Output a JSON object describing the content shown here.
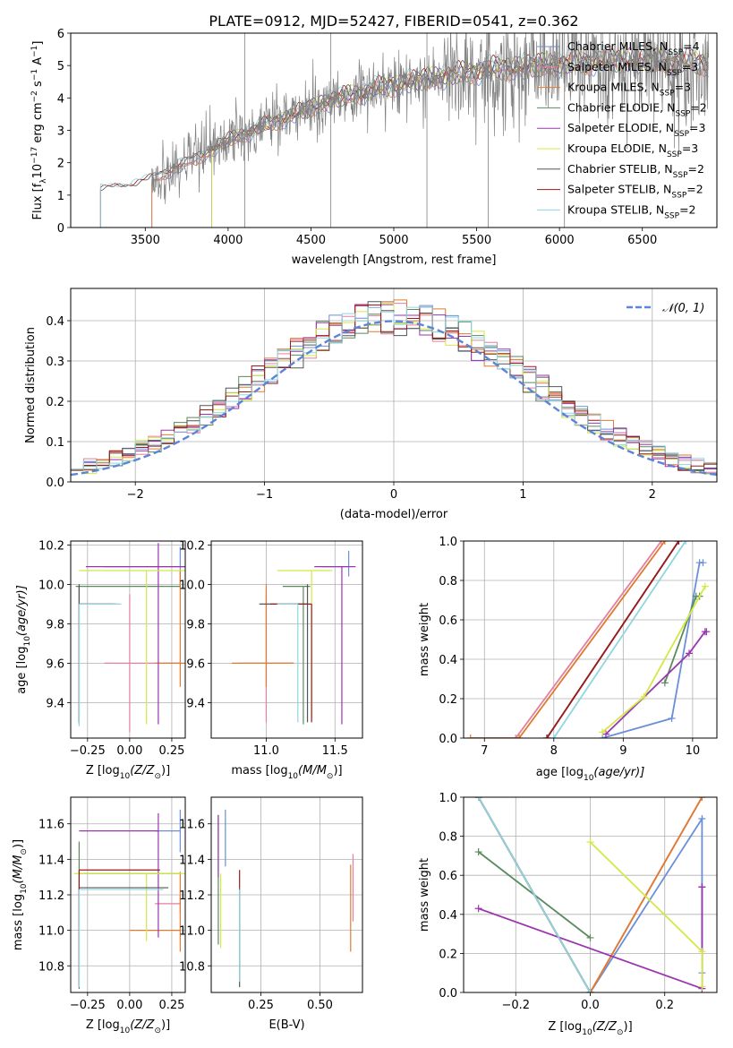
{
  "figure": {
    "title": "PLATE=0912, MJD=52427, FIBERID=0541, z=0.362"
  },
  "colors": {
    "chabrier_miles": "#6a8fd8",
    "salpeter_miles": "#e57fa0",
    "kroupa_miles": "#e07a30",
    "chabrier_elodie": "#5a8a5e",
    "salpeter_elodie": "#9b35b0",
    "kroupa_elodie": "#d4e845",
    "chabrier_stelib": "#555555",
    "salpeter_stelib": "#9b1a1a",
    "kroupa_stelib": "#8fd6e0",
    "data_spectrum": "#808080",
    "normal_curve": "#5b85d9",
    "grid": "#b0b0b0"
  },
  "chart_data": [
    {
      "id": "spectrum",
      "type": "line",
      "xlabel": "wavelength [Angstrom, rest frame]",
      "ylabel_main": "Flux [f",
      "ylabel_sub": "λ",
      "ylabel_mid": "10",
      "ylabel_exp1": "−17",
      "ylabel_tail": " erg cm",
      "ylabel_exp2": "−2",
      "ylabel_tail2": " s",
      "ylabel_exp3": "−1",
      "ylabel_tail3": " A",
      "ylabel_exp4": "−1",
      "ylabel_end": "]",
      "xlim": [
        3050,
        6950
      ],
      "ylim": [
        0,
        6
      ],
      "xticks": [
        3500,
        4000,
        4500,
        5000,
        5500,
        6000,
        6500
      ],
      "yticks": [
        0,
        1,
        2,
        3,
        4,
        5,
        6
      ],
      "continuum_points": [
        [
          3230,
          1.15
        ],
        [
          3400,
          1.25
        ],
        [
          3520,
          1.45
        ],
        [
          3800,
          2.1
        ],
        [
          4000,
          2.7
        ],
        [
          4300,
          3.3
        ],
        [
          4600,
          3.9
        ],
        [
          4900,
          4.3
        ],
        [
          5200,
          4.6
        ],
        [
          5600,
          4.9
        ],
        [
          6000,
          5.05
        ],
        [
          6400,
          5.2
        ],
        [
          6700,
          5.1
        ]
      ],
      "legend": [
        {
          "label": "Chabrier MILES, N",
          "sub": "SSP",
          "suffix": "=4"
        },
        {
          "label": "Salpeter MILES, N",
          "sub": "SSP",
          "suffix": "=3"
        },
        {
          "label": "Kroupa MILES, N",
          "sub": "SSP",
          "suffix": "=3"
        },
        {
          "label": "Chabrier ELODIE, N",
          "sub": "SSP",
          "suffix": "=2"
        },
        {
          "label": "Salpeter ELODIE, N",
          "sub": "SSP",
          "suffix": "=3"
        },
        {
          "label": "Kroupa ELODIE, N",
          "sub": "SSP",
          "suffix": "=3"
        },
        {
          "label": "Chabrier STELIB, N",
          "sub": "SSP",
          "suffix": "=2"
        },
        {
          "label": "Salpeter STELIB, N",
          "sub": "SSP",
          "suffix": "=2"
        },
        {
          "label": "Kroupa STELIB, N",
          "sub": "SSP",
          "suffix": "=2"
        }
      ]
    },
    {
      "id": "residuals",
      "type": "histogram",
      "xlabel": "(data-model)/error",
      "ylabel": "Normed distribution",
      "xlim": [
        -2.5,
        2.5
      ],
      "ylim": [
        0,
        0.48
      ],
      "xticks": [
        -2,
        -1,
        0,
        1,
        2
      ],
      "yticks": [
        0.0,
        0.1,
        0.2,
        0.3,
        0.4
      ],
      "legend": "𝒩(0, 1)",
      "bin_width": 0.1,
      "bin_start": -2.5
    },
    {
      "id": "age_vs_Z",
      "type": "errorbar",
      "xlabel": "Z [log",
      "xlabel_sub": "10",
      "xlabel_rest": "(Z/Z",
      "xlabel_sun": "⊙",
      "xlabel_end": ")]",
      "ylabel": "age  [log",
      "ylabel_sub": "10",
      "ylabel_rest": "(age/yr)]",
      "xlim": [
        -0.35,
        0.33
      ],
      "ylim": [
        9.22,
        10.22
      ],
      "xticks": [
        -0.25,
        0.0,
        0.25
      ],
      "xticklabels": [
        "−0.25",
        "0.00",
        "0.25"
      ],
      "yticks": [
        9.4,
        9.6,
        9.8,
        10.0,
        10.2
      ],
      "points": [
        {
          "s": "chabrier_miles",
          "x": 0.3,
          "xerr": [
            0.45,
            0.45
          ],
          "y": 10.09,
          "yerr": [
            0.1,
            0.1
          ]
        },
        {
          "s": "salpeter_miles",
          "x": 0.0,
          "xerr": [
            0.15,
            0.3
          ],
          "y": 9.6,
          "yerr": [
            0.35,
            0.35
          ]
        },
        {
          "s": "kroupa_miles",
          "x": 0.3,
          "xerr": [
            0.15,
            0.15
          ],
          "y": 9.6,
          "yerr": [
            0.12,
            0.47
          ]
        },
        {
          "s": "chabrier_elodie",
          "x": -0.3,
          "xerr": [
            0.02,
            0.6
          ],
          "y": 9.99,
          "yerr": [
            0.7,
            0.0
          ]
        },
        {
          "s": "salpeter_elodie",
          "x": 0.17,
          "xerr": [
            0.43,
            0.4
          ],
          "y": 10.09,
          "yerr": [
            0.8,
            0.12
          ]
        },
        {
          "s": "kroupa_elodie",
          "x": 0.1,
          "xerr": [
            0.4,
            0.23
          ],
          "y": 10.07,
          "yerr": [
            0.78,
            0.0
          ]
        },
        {
          "s": "chabrier_stelib",
          "x": -0.3,
          "xerr": [
            0.0,
            0.2
          ],
          "y": 9.9,
          "yerr": [
            0.6,
            0.1
          ]
        },
        {
          "s": "salpeter_stelib",
          "x": -0.3,
          "xerr": [
            0.0,
            0.22
          ],
          "y": 9.9,
          "yerr": [
            0.6,
            0.0
          ]
        },
        {
          "s": "kroupa_stelib",
          "x": -0.3,
          "xerr": [
            0.0,
            0.25
          ],
          "y": 9.9,
          "yerr": [
            0.62,
            0.0
          ]
        }
      ]
    },
    {
      "id": "age_vs_mass",
      "type": "errorbar",
      "xlabel": "mass [log",
      "xlabel_sub": "10",
      "xlabel_rest": "(M/M",
      "xlabel_sun": "⊙",
      "xlabel_end": ")]",
      "xlim": [
        10.6,
        11.7
      ],
      "ylim": [
        9.22,
        10.22
      ],
      "xticks": [
        11.0,
        11.5
      ],
      "xticklabels": [
        "11.0",
        "11.5"
      ],
      "yticks": [
        9.4,
        9.6,
        9.8,
        10.0,
        10.2
      ],
      "points": [
        {
          "s": "chabrier_miles",
          "x": 11.6,
          "xerr": [
            0.2,
            0.0
          ],
          "y": 10.09,
          "yerr": [
            0.05,
            0.08
          ]
        },
        {
          "s": "salpeter_miles",
          "x": 11.0,
          "xerr": [
            0.2,
            0.2
          ],
          "y": 9.6,
          "yerr": [
            0.3,
            0.35
          ]
        },
        {
          "s": "kroupa_miles",
          "x": 11.0,
          "xerr": [
            0.25,
            0.2
          ],
          "y": 9.6,
          "yerr": [
            0.12,
            0.4
          ]
        },
        {
          "s": "chabrier_elodie",
          "x": 11.27,
          "xerr": [
            0.15,
            0.05
          ],
          "y": 9.99,
          "yerr": [
            0.7,
            0.0
          ]
        },
        {
          "s": "salpeter_elodie",
          "x": 11.55,
          "xerr": [
            0.2,
            0.1
          ],
          "y": 10.09,
          "yerr": [
            0.8,
            0.0
          ]
        },
        {
          "s": "kroupa_elodie",
          "x": 11.33,
          "xerr": [
            0.25,
            0.15
          ],
          "y": 10.07,
          "yerr": [
            0.75,
            0.0
          ]
        },
        {
          "s": "chabrier_stelib",
          "x": 11.3,
          "xerr": [
            0.35,
            0.0
          ],
          "y": 9.9,
          "yerr": [
            0.6,
            0.1
          ]
        },
        {
          "s": "salpeter_stelib",
          "x": 11.33,
          "xerr": [
            0.3,
            0.0
          ],
          "y": 9.9,
          "yerr": [
            0.6,
            0.0
          ]
        },
        {
          "s": "kroupa_stelib",
          "x": 11.23,
          "xerr": [
            0.15,
            0.0
          ],
          "y": 9.9,
          "yerr": [
            0.6,
            0.0
          ]
        }
      ]
    },
    {
      "id": "massweight_vs_age",
      "type": "line",
      "xlabel": "age  [log",
      "xlabel_sub": "10",
      "xlabel_rest": "(age/yr)]",
      "ylabel": "mass weight",
      "xlim": [
        6.7,
        10.35
      ],
      "ylim": [
        0,
        1
      ],
      "xticks": [
        7,
        8,
        9,
        10
      ],
      "yticks": [
        0.0,
        0.2,
        0.4,
        0.6,
        0.8,
        1.0
      ],
      "series": [
        {
          "s": "chabrier_miles",
          "x": [
            8.7,
            9.7,
            10.1,
            10.15
          ],
          "y": [
            0.0,
            0.1,
            0.89,
            0.89
          ]
        },
        {
          "s": "salpeter_miles",
          "x": [
            7.45,
            9.55
          ],
          "y": [
            0.0,
            1.0
          ]
        },
        {
          "s": "kroupa_miles",
          "x": [
            6.8,
            7.5,
            9.6
          ],
          "y": [
            0.0,
            0.0,
            1.0
          ]
        },
        {
          "s": "chabrier_elodie",
          "x": [
            9.6,
            10.05,
            10.1
          ],
          "y": [
            0.28,
            0.72,
            0.72
          ]
        },
        {
          "s": "salpeter_elodie",
          "x": [
            8.75,
            9.95,
            10.18,
            10.2
          ],
          "y": [
            0.02,
            0.43,
            0.54,
            0.54
          ]
        },
        {
          "s": "kroupa_elodie",
          "x": [
            8.7,
            9.3,
            10.18
          ],
          "y": [
            0.03,
            0.21,
            0.77
          ]
        },
        {
          "s": "chabrier_stelib",
          "x": [
            7.9,
            9.8
          ],
          "y": [
            0.0,
            1.0
          ]
        },
        {
          "s": "salpeter_stelib",
          "x": [
            7.9,
            9.8
          ],
          "y": [
            0.0,
            1.0
          ]
        },
        {
          "s": "kroupa_stelib",
          "x": [
            8.0,
            9.9
          ],
          "y": [
            0.0,
            1.0
          ]
        }
      ]
    },
    {
      "id": "mass_vs_Z",
      "type": "errorbar",
      "xlabel": "Z [log",
      "xlabel_sub": "10",
      "xlabel_rest": "(Z/Z",
      "xlabel_sun": "⊙",
      "xlabel_end": ")]",
      "ylabel": "mass [log",
      "ylabel_sub": "10",
      "ylabel_rest": "(M/M",
      "ylabel_sun": "⊙",
      "ylabel_end": ")]",
      "xlim": [
        -0.35,
        0.33
      ],
      "ylim": [
        10.65,
        11.75
      ],
      "xticks": [
        -0.25,
        0.0,
        0.25
      ],
      "xticklabels": [
        "−0.25",
        "0.00",
        "0.25"
      ],
      "yticks": [
        10.8,
        11.0,
        11.2,
        11.4,
        11.6
      ],
      "points": [
        {
          "s": "chabrier_miles",
          "x": 0.3,
          "xerr": [
            0.15,
            0.0
          ],
          "y": 11.56,
          "yerr": [
            0.12,
            0.12
          ]
        },
        {
          "s": "salpeter_miles",
          "x": 0.3,
          "xerr": [
            0.15,
            0.0
          ],
          "y": 11.15,
          "yerr": [
            0.05,
            0.05
          ]
        },
        {
          "s": "kroupa_miles",
          "x": 0.3,
          "xerr": [
            0.3,
            0.0
          ],
          "y": 11.0,
          "yerr": [
            0.12,
            0.33
          ]
        },
        {
          "s": "chabrier_elodie",
          "x": -0.3,
          "xerr": [
            0.0,
            0.6
          ],
          "y": 11.32,
          "yerr": [
            0.65,
            0.18
          ]
        },
        {
          "s": "salpeter_elodie",
          "x": 0.17,
          "xerr": [
            0.47,
            0.0
          ],
          "y": 11.56,
          "yerr": [
            0.6,
            0.1
          ]
        },
        {
          "s": "kroupa_elodie",
          "x": 0.1,
          "xerr": [
            0.43,
            0.23
          ],
          "y": 11.32,
          "yerr": [
            0.38,
            0.0
          ]
        },
        {
          "s": "chabrier_stelib",
          "x": -0.3,
          "xerr": [
            0.0,
            0.53
          ],
          "y": 11.24,
          "yerr": [
            0.56,
            0.0
          ]
        },
        {
          "s": "salpeter_stelib",
          "x": -0.3,
          "xerr": [
            0.0,
            0.48
          ],
          "y": 11.34,
          "yerr": [
            0.65,
            0.0
          ]
        },
        {
          "s": "kroupa_stelib",
          "x": -0.3,
          "xerr": [
            0.0,
            0.5
          ],
          "y": 11.23,
          "yerr": [
            0.55,
            0.0
          ]
        }
      ]
    },
    {
      "id": "mass_vs_ebv",
      "type": "errorbar",
      "xlabel": "E(B-V)",
      "xlim": [
        0.04,
        0.68
      ],
      "ylim": [
        10.65,
        11.75
      ],
      "xticks": [
        0.25,
        0.5
      ],
      "xticklabels": [
        "0.25",
        "0.50"
      ],
      "yticks": [
        10.8,
        11.0,
        11.2,
        11.4,
        11.6
      ],
      "points": [
        {
          "s": "chabrier_miles",
          "x": 0.1,
          "y": 11.56,
          "yerr": [
            0.2,
            0.12
          ]
        },
        {
          "s": "salpeter_miles",
          "x": 0.64,
          "y": 11.15,
          "yerr": [
            0.1,
            0.28
          ]
        },
        {
          "s": "kroupa_miles",
          "x": 0.63,
          "y": 11.0,
          "yerr": [
            0.12,
            0.37
          ]
        },
        {
          "s": "chabrier_elodie",
          "x": 0.07,
          "y": 11.32,
          "yerr": [
            0.4,
            0.33
          ]
        },
        {
          "s": "salpeter_elodie",
          "x": 0.07,
          "y": 11.55,
          "yerr": [
            0.25,
            0.1
          ]
        },
        {
          "s": "kroupa_elodie",
          "x": 0.08,
          "y": 11.32,
          "yerr": [
            0.42,
            0.0
          ]
        },
        {
          "s": "chabrier_stelib",
          "x": 0.16,
          "y": 11.24,
          "yerr": [
            0.56,
            0.0
          ]
        },
        {
          "s": "salpeter_stelib",
          "x": 0.16,
          "y": 11.34,
          "yerr": [
            0.1,
            0.0
          ]
        },
        {
          "s": "kroupa_stelib",
          "x": 0.16,
          "y": 11.23,
          "yerr": [
            0.52,
            0.0
          ]
        }
      ]
    },
    {
      "id": "massweight_vs_Z",
      "type": "line",
      "xlabel": "Z [log",
      "xlabel_sub": "10",
      "xlabel_rest": "(Z/Z",
      "xlabel_sun": "⊙",
      "xlabel_end": ")]",
      "ylabel": "mass weight",
      "xlim": [
        -0.34,
        0.34
      ],
      "ylim": [
        0,
        1
      ],
      "xticks": [
        -0.2,
        0.0,
        0.2
      ],
      "xticklabels": [
        "−0.2",
        "0.0",
        "0.2"
      ],
      "yticks": [
        0.0,
        0.2,
        0.4,
        0.6,
        0.8,
        1.0
      ],
      "series": [
        {
          "s": "chabrier_miles",
          "x": [
            -0.3,
            0.0,
            0.3,
            0.3
          ],
          "y": [
            1.0,
            0.0,
            0.89,
            0.1
          ]
        },
        {
          "s": "salpeter_miles",
          "x": [
            0.0,
            0.3
          ],
          "y": [
            0.0,
            1.0
          ]
        },
        {
          "s": "kroupa_miles",
          "x": [
            0.0,
            0.3
          ],
          "y": [
            0.0,
            1.0
          ]
        },
        {
          "s": "chabrier_elodie",
          "x": [
            -0.3,
            0.0
          ],
          "y": [
            0.72,
            0.28
          ]
        },
        {
          "s": "salpeter_elodie",
          "x": [
            -0.3,
            0.3,
            0.3,
            0.3
          ],
          "y": [
            0.43,
            0.02,
            0.54,
            0.54
          ]
        },
        {
          "s": "kroupa_elodie",
          "x": [
            0.0,
            0.3,
            0.3
          ],
          "y": [
            0.77,
            0.21,
            0.03
          ]
        },
        {
          "s": "chabrier_stelib",
          "x": [
            -0.3,
            0.0
          ],
          "y": [
            1.0,
            0.0
          ]
        },
        {
          "s": "salpeter_stelib",
          "x": [
            -0.3,
            0.0
          ],
          "y": [
            1.0,
            0.0
          ]
        },
        {
          "s": "kroupa_stelib",
          "x": [
            -0.3,
            0.0
          ],
          "y": [
            1.0,
            0.0
          ]
        }
      ]
    }
  ]
}
